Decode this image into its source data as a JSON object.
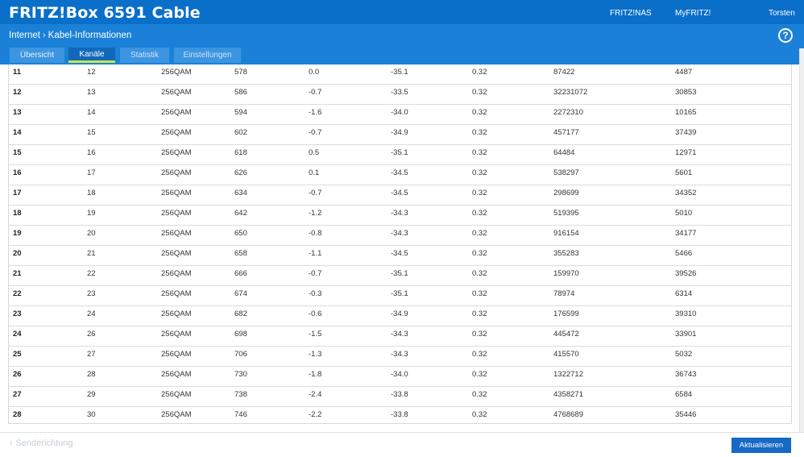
{
  "header": {
    "brand": "FRITZ!Box 6591 Cable",
    "links": [
      "FRITZ!NAS",
      "MyFRITZ!",
      "Torsten"
    ]
  },
  "breadcrumb": {
    "parent": "Internet",
    "separator": "›",
    "current": "Kabel-Informationen"
  },
  "help_label": "?",
  "tabs": [
    {
      "label": "Übersicht",
      "active": false
    },
    {
      "label": "Kanäle",
      "active": true
    },
    {
      "label": "Statistik",
      "active": false
    },
    {
      "label": "Einstellungen",
      "active": false
    }
  ],
  "table": {
    "rows": [
      [
        "11",
        "12",
        "256QAM",
        "578",
        "0.0",
        "-35.1",
        "0.32",
        "87422",
        "4487"
      ],
      [
        "12",
        "13",
        "256QAM",
        "586",
        "-0.7",
        "-33.5",
        "0.32",
        "32231072",
        "30853"
      ],
      [
        "13",
        "14",
        "256QAM",
        "594",
        "-1.6",
        "-34.0",
        "0.32",
        "2272310",
        "10165"
      ],
      [
        "14",
        "15",
        "256QAM",
        "602",
        "-0.7",
        "-34.9",
        "0.32",
        "457177",
        "37439"
      ],
      [
        "15",
        "16",
        "256QAM",
        "618",
        "0.5",
        "-35.1",
        "0.32",
        "64484",
        "12971"
      ],
      [
        "16",
        "17",
        "256QAM",
        "626",
        "0.1",
        "-34.5",
        "0.32",
        "538297",
        "5601"
      ],
      [
        "17",
        "18",
        "256QAM",
        "634",
        "-0.7",
        "-34.5",
        "0.32",
        "298699",
        "34352"
      ],
      [
        "18",
        "19",
        "256QAM",
        "642",
        "-1.2",
        "-34.3",
        "0.32",
        "519395",
        "5010"
      ],
      [
        "19",
        "20",
        "256QAM",
        "650",
        "-0.8",
        "-34.3",
        "0.32",
        "916154",
        "34177"
      ],
      [
        "20",
        "21",
        "256QAM",
        "658",
        "-1.1",
        "-34.5",
        "0.32",
        "355283",
        "5466"
      ],
      [
        "21",
        "22",
        "256QAM",
        "666",
        "-0.7",
        "-35.1",
        "0.32",
        "159970",
        "39526"
      ],
      [
        "22",
        "23",
        "256QAM",
        "674",
        "-0.3",
        "-35.1",
        "0.32",
        "78974",
        "6314"
      ],
      [
        "23",
        "24",
        "256QAM",
        "682",
        "-0.6",
        "-34.9",
        "0.32",
        "176599",
        "39310"
      ],
      [
        "24",
        "26",
        "256QAM",
        "698",
        "-1.5",
        "-34.3",
        "0.32",
        "445472",
        "33901"
      ],
      [
        "25",
        "27",
        "256QAM",
        "706",
        "-1.3",
        "-34.3",
        "0.32",
        "415570",
        "5032"
      ],
      [
        "26",
        "28",
        "256QAM",
        "730",
        "-1.8",
        "-34.0",
        "0.32",
        "1322712",
        "36743"
      ],
      [
        "27",
        "29",
        "256QAM",
        "738",
        "-2.4",
        "-33.8",
        "0.32",
        "4358271",
        "6584"
      ],
      [
        "28",
        "30",
        "256QAM",
        "746",
        "-2.2",
        "-33.8",
        "0.32",
        "4768689",
        "35446"
      ]
    ]
  },
  "footer": {
    "sort_label": "↑ Senderichtung",
    "refresh_label": "Aktualisieren"
  },
  "colors": {
    "header_blue": "#0a6fc9",
    "subbar_blue": "#1b81d8",
    "active_tab_underline": "#c9e64a",
    "button_blue": "#1669c4"
  }
}
